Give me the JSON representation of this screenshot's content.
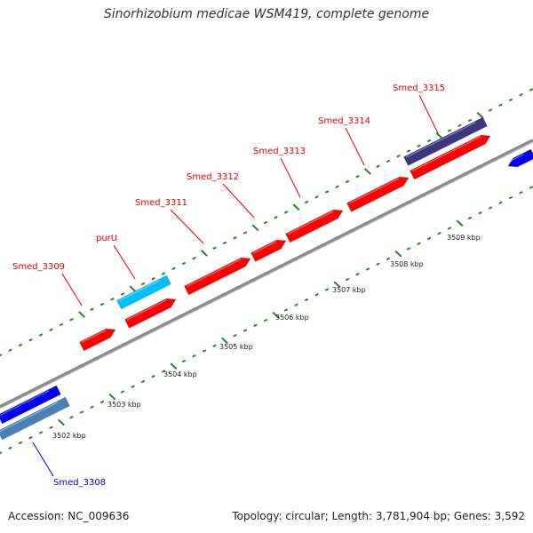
{
  "title": "Sinorhizobium medicae WSM419, complete genome",
  "footer": {
    "accession": "Accession: NC_009636",
    "summary": "Topology: circular; Length: 3,781,904 bp; Genes: 3,592"
  },
  "colors": {
    "background": "#ffffff",
    "backbone": "#8a8a8a",
    "tick_green": "#1f8a1f",
    "forward_gene": "#ff0000",
    "purU_gene": "#00bfff",
    "smed3315_gene": "#3c3580",
    "reverse_gene": "#0000ee",
    "reverse_gene_2": "#4a80b8",
    "label_red": "#e00000",
    "label_blue": "#0000cc",
    "axis_label": "#222222"
  },
  "genes": [
    {
      "name": "Smed_3309",
      "label_color": "red"
    },
    {
      "name": "purU",
      "label_color": "red"
    },
    {
      "name": "Smed_3311",
      "label_color": "red"
    },
    {
      "name": "Smed_3312",
      "label_color": "red"
    },
    {
      "name": "Smed_3313",
      "label_color": "red"
    },
    {
      "name": "Smed_3314",
      "label_color": "red"
    },
    {
      "name": "Smed_3315",
      "label_color": "red"
    },
    {
      "name": "Smed_3308",
      "label_color": "blue"
    }
  ],
  "scale_labels": [
    "3502 kbp",
    "3503 kbp",
    "3504 kbp",
    "3505 kbp",
    "3506 kbp",
    "3507 kbp",
    "3508 kbp",
    "3509 kbp"
  ]
}
